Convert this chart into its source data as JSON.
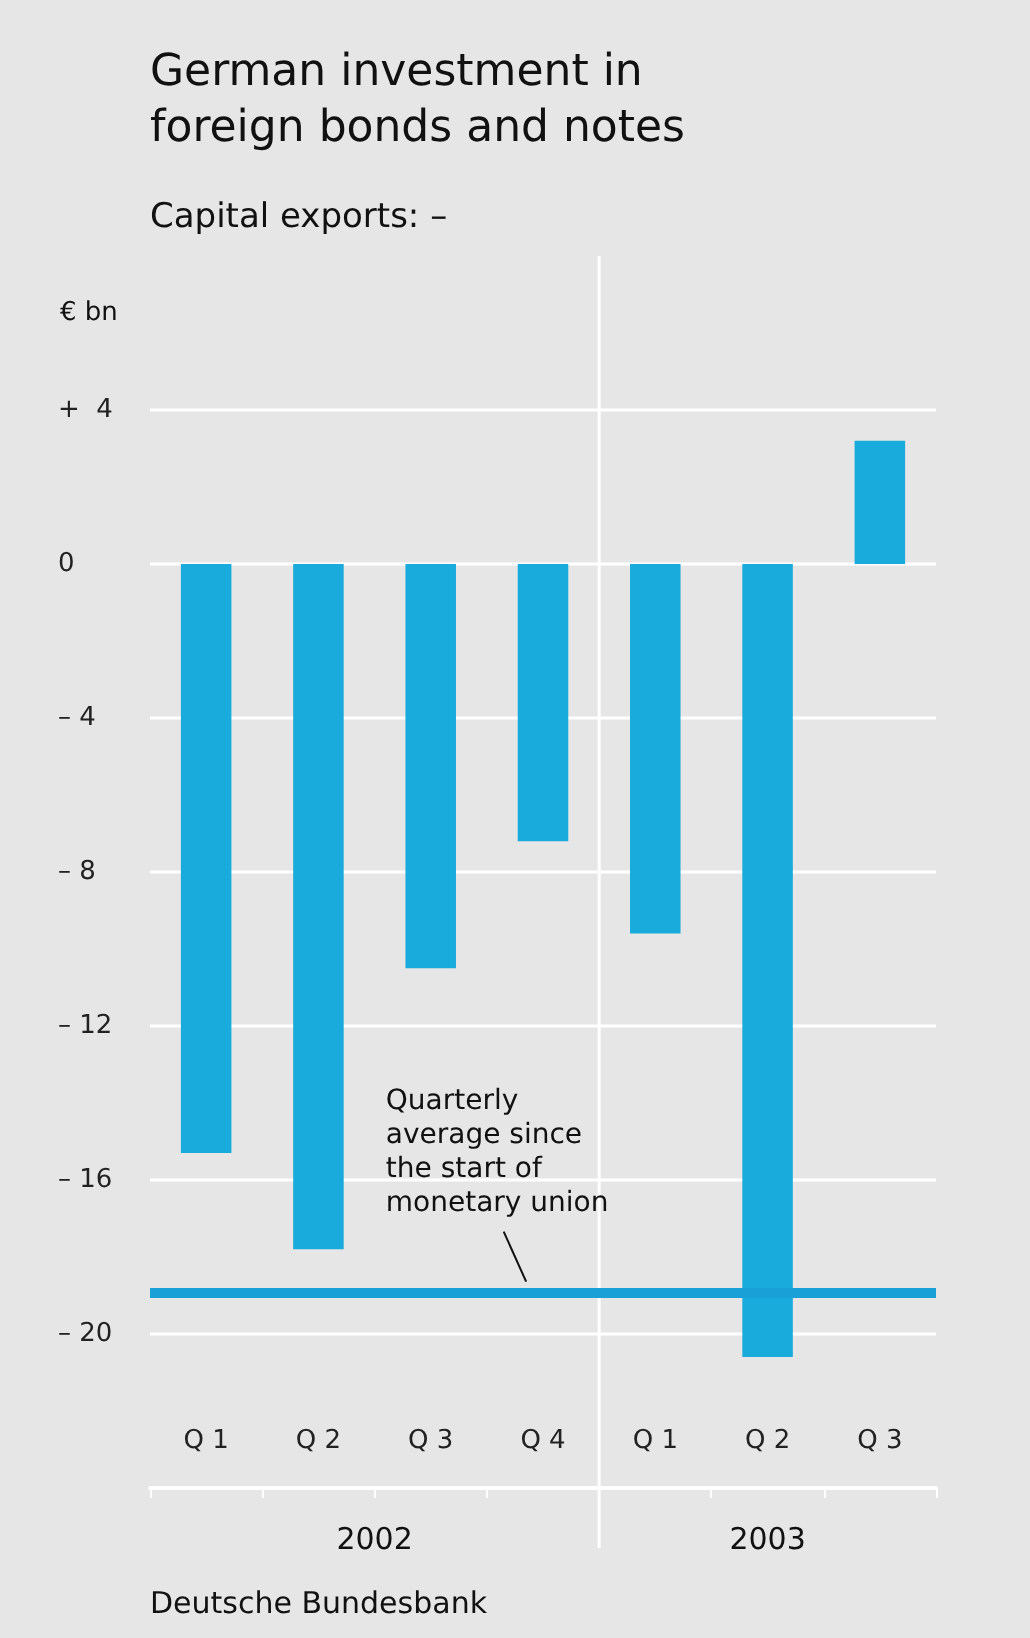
{
  "chart_data": {
    "type": "bar",
    "title": "German investment in\nforeign bonds and notes",
    "subtitle": "Capital exports: –",
    "ylabel": "€ bn",
    "categories": [
      "Q 1",
      "Q 2",
      "Q 3",
      "Q 4",
      "Q 1",
      "Q 2",
      "Q 3"
    ],
    "values": [
      -15.3,
      -17.8,
      -10.5,
      -7.2,
      -9.6,
      -20.6,
      3.2
    ],
    "color": "#19abdc",
    "ylim": [
      -24,
      8
    ],
    "yticks": [
      {
        "value": -20,
        "label": "– 20"
      },
      {
        "value": -16,
        "label": "– 16"
      },
      {
        "value": -12,
        "label": "– 12"
      },
      {
        "value": -8,
        "label": "– 8"
      },
      {
        "value": -4,
        "label": "– 4"
      },
      0,
      {
        "value": 4,
        "label": "+  4"
      }
    ],
    "grid": "y",
    "ref_lines": [
      {
        "axis": "y",
        "value": -18.9,
        "label": "Quarterly\naverage since\nthe start of\nmonetary union",
        "color": "#19a0d6"
      }
    ],
    "annotations": [
      "2002",
      "2003",
      "Deutsche Bundesbank"
    ]
  }
}
